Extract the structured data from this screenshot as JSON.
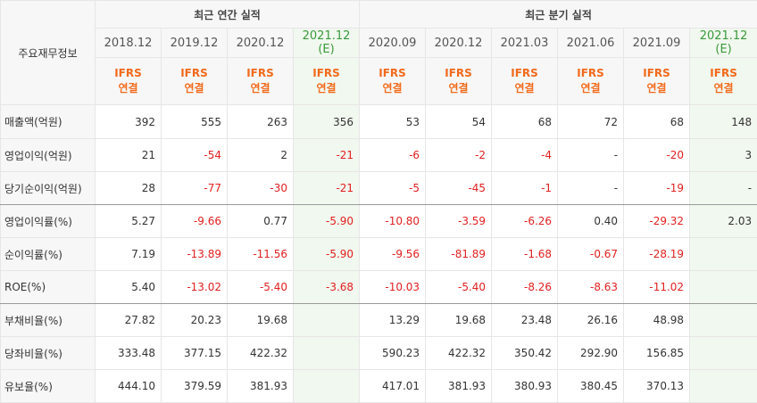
{
  "corner_label": "주요재무정보",
  "groups": {
    "annual": "최근 연간 실적",
    "quarterly": "최근 분기 실적"
  },
  "periods": [
    {
      "label": "2018.12",
      "est": false
    },
    {
      "label": "2019.12",
      "est": false
    },
    {
      "label": "2020.12",
      "est": false
    },
    {
      "label": "2021.12",
      "sub": "(E)",
      "est": true
    },
    {
      "label": "2020.09",
      "est": false
    },
    {
      "label": "2020.12",
      "est": false
    },
    {
      "label": "2021.03",
      "est": false
    },
    {
      "label": "2021.06",
      "est": false
    },
    {
      "label": "2021.09",
      "est": false
    },
    {
      "label": "2021.12",
      "sub": "(E)",
      "est": true
    }
  ],
  "ifrs": {
    "line1": "IFRS",
    "line2": "연결"
  },
  "rows": [
    {
      "label": "매출액(억원)",
      "values": [
        "392",
        "555",
        "263",
        "356",
        "53",
        "54",
        "68",
        "72",
        "68",
        "148"
      ]
    },
    {
      "label": "영업이익(억원)",
      "values": [
        "21",
        "-54",
        "2",
        "-21",
        "-6",
        "-2",
        "-4",
        "-",
        "-20",
        "3"
      ]
    },
    {
      "label": "당기순이익(억원)",
      "values": [
        "28",
        "-77",
        "-30",
        "-21",
        "-5",
        "-45",
        "-1",
        "-",
        "-19",
        "-"
      ]
    },
    {
      "label": "영업이익률(%)",
      "values": [
        "5.27",
        "-9.66",
        "0.77",
        "-5.90",
        "-10.80",
        "-3.59",
        "-6.26",
        "0.40",
        "-29.32",
        "2.03"
      ]
    },
    {
      "label": "순이익률(%)",
      "values": [
        "7.19",
        "-13.89",
        "-11.56",
        "-5.90",
        "-9.56",
        "-81.89",
        "-1.68",
        "-0.67",
        "-28.19",
        ""
      ]
    },
    {
      "label": "ROE(%)",
      "values": [
        "5.40",
        "-13.02",
        "-5.40",
        "-3.68",
        "-10.03",
        "-5.40",
        "-8.26",
        "-8.63",
        "-11.02",
        ""
      ]
    },
    {
      "label": "부채비율(%)",
      "values": [
        "27.82",
        "20.23",
        "19.68",
        "",
        "13.29",
        "19.68",
        "23.48",
        "26.16",
        "48.98",
        ""
      ]
    },
    {
      "label": "당좌비율(%)",
      "values": [
        "333.48",
        "377.15",
        "422.32",
        "",
        "590.23",
        "422.32",
        "350.42",
        "292.90",
        "156.85",
        ""
      ]
    },
    {
      "label": "유보율(%)",
      "values": [
        "444.10",
        "379.59",
        "381.93",
        "",
        "417.01",
        "381.93",
        "380.93",
        "380.45",
        "370.13",
        ""
      ]
    }
  ],
  "colors": {
    "negative": "#e22020",
    "ifrs": "#f26a1b",
    "estimate_bg": "#f1f8ef",
    "estimate_text": "#3a9a3a"
  }
}
